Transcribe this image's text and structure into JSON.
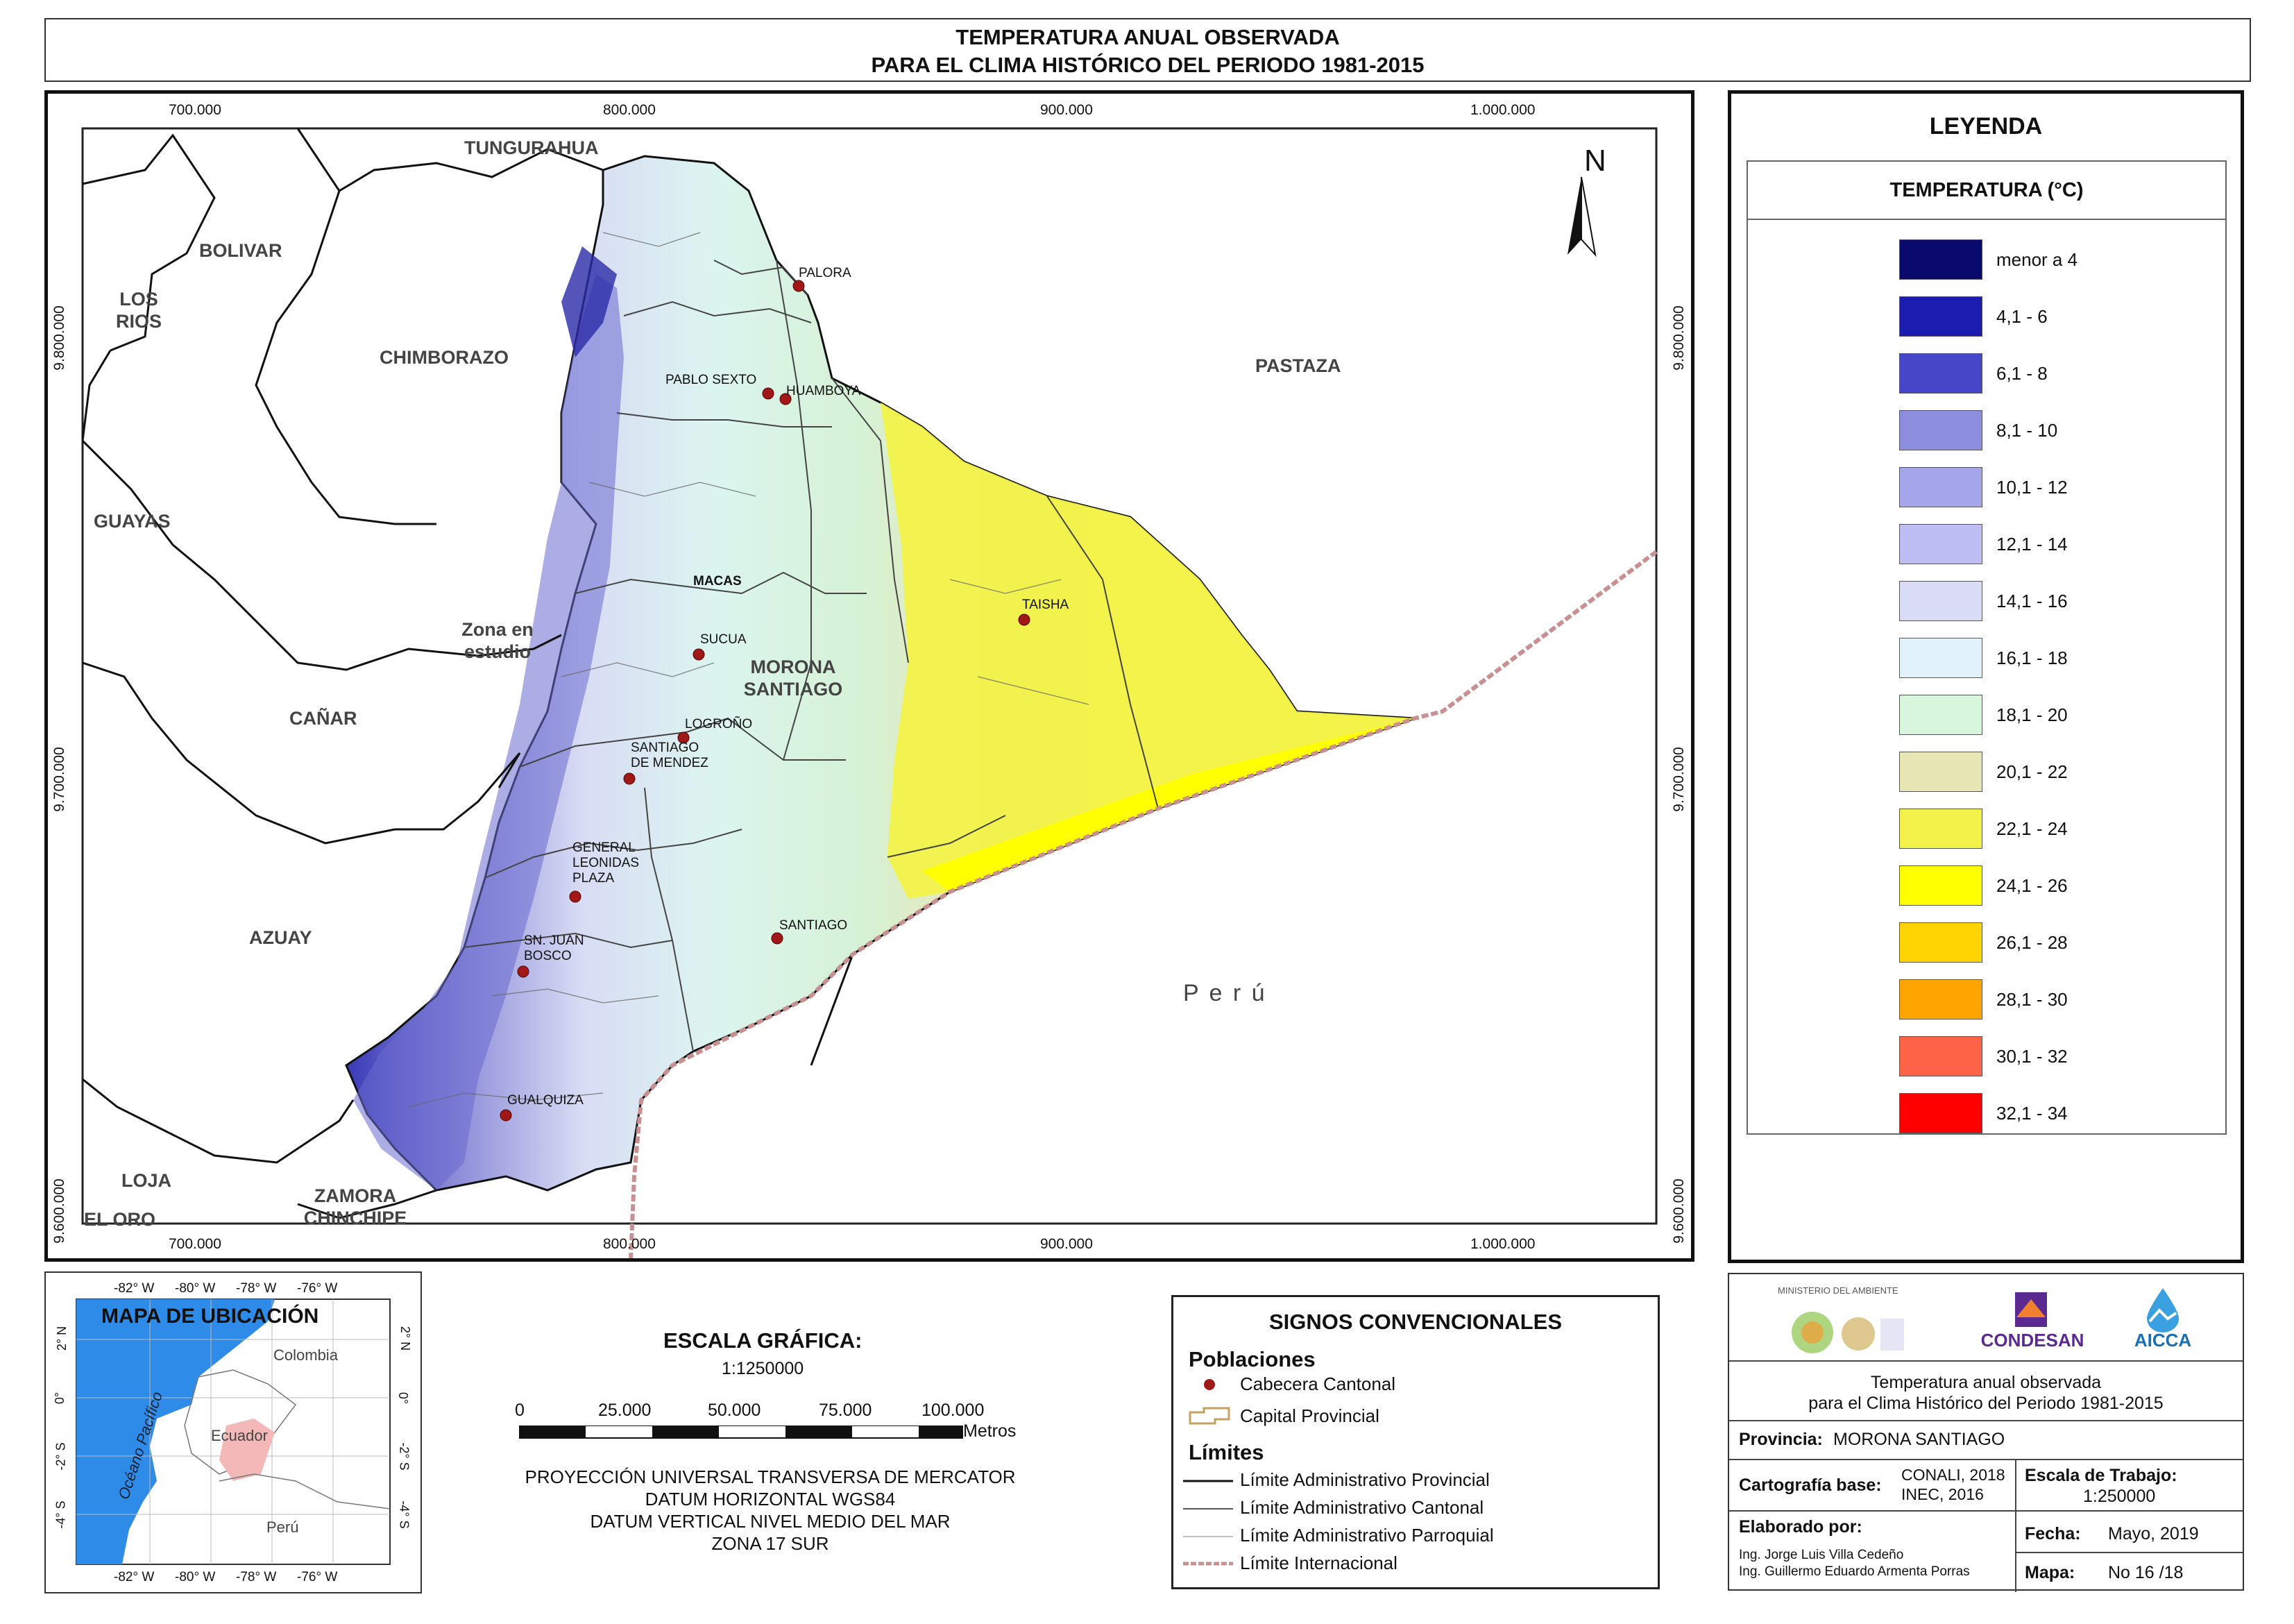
{
  "title": {
    "line1": "TEMPERATURA ANUAL OBSERVADA",
    "line2": "PARA EL CLIMA HISTÓRICO DEL PERIODO 1981-2015"
  },
  "map": {
    "x_ticks": [
      "700.000",
      "800.000",
      "900.000",
      "1.000.000"
    ],
    "y_ticks": [
      "9.800.000",
      "9.700.000",
      "9.600.000"
    ],
    "north": "N",
    "regions": {
      "tungurahua": "TUNGURAHUA",
      "bolivar": "BOLIVAR",
      "los_rios_1": "LOS",
      "los_rios_2": "RIOS",
      "chimborazo": "CHIMBORAZO",
      "pastaza": "PASTAZA",
      "guayas": "GUAYAS",
      "zona_1": "Zona en",
      "zona_2": "estudio",
      "canar": "CAÑAR",
      "morona_1": "MORONA",
      "morona_2": "SANTIAGO",
      "azuay": "AZUAY",
      "peru": "P e r ú",
      "loja": "LOJA",
      "el_oro": "EL ORO",
      "zamora_1": "ZAMORA",
      "zamora_2": "CHINCHIPE"
    },
    "towns": {
      "palora": "PALORA",
      "pablo_sexto": "PABLO SEXTO",
      "huamboya": "HUAMBOYA",
      "macas": "MACAS",
      "taisha": "TAISHA",
      "sucua": "SUCUA",
      "logrono": "LOGROÑO",
      "santiago_mendez_1": "SANTIAGO",
      "santiago_mendez_2": "DE MENDEZ",
      "gral_plaza_1": "GENERAL",
      "gral_plaza_2": "LEONIDAS",
      "gral_plaza_3": "PLAZA",
      "santiago": "SANTIAGO",
      "sjb_1": "SN. JUAN",
      "sjb_2": "BOSCO",
      "gualquiza": "GUALQUIZA"
    }
  },
  "legend": {
    "title": "LEYENDA",
    "subtitle": "TEMPERATURA (°C)",
    "classes": [
      {
        "label": "menor a 4",
        "color": "#0a0a6e"
      },
      {
        "label": "4,1 - 6",
        "color": "#1c1cb0"
      },
      {
        "label": "6,1 - 8",
        "color": "#4646c8"
      },
      {
        "label": "8,1 - 10",
        "color": "#8e8ede"
      },
      {
        "label": "10,1 - 12",
        "color": "#a6a6ea"
      },
      {
        "label": "12,1 - 14",
        "color": "#bebef4"
      },
      {
        "label": "14,1 - 16",
        "color": "#dadcf6"
      },
      {
        "label": "16,1 - 18",
        "color": "#e2f2fa"
      },
      {
        "label": "18,1 - 20",
        "color": "#d8f6dc"
      },
      {
        "label": "20,1 - 22",
        "color": "#e8e6b4"
      },
      {
        "label": "22,1 - 24",
        "color": "#f2f24a"
      },
      {
        "label": "24,1 - 26",
        "color": "#ffff00"
      },
      {
        "label": "26,1 - 28",
        "color": "#ffd400"
      },
      {
        "label": "28,1 - 30",
        "color": "#ffa500"
      },
      {
        "label": "30,1 - 32",
        "color": "#ff6347"
      },
      {
        "label": "32,1 - 34",
        "color": "#ff0000"
      }
    ]
  },
  "location_map": {
    "title": "MAPA DE UBICACIÓN",
    "top_ticks": [
      "-82° W",
      "-80° W",
      "-78° W",
      "-76° W"
    ],
    "bottom_ticks": [
      "-82° W",
      "-80° W",
      "-78° W",
      "-76° W"
    ],
    "side_ticks": [
      "2° N",
      "0°",
      "-2° S",
      "-4° S"
    ],
    "ocean": "Océano Pacífico",
    "colombia": "Colombia",
    "ecuador": "Ecuador",
    "peru": "Perú"
  },
  "scale": {
    "title": "ESCALA GRÁFICA:",
    "ratio": "1:1250000",
    "ticks": [
      "0",
      "25.000",
      "50.000",
      "75.000",
      "100.000"
    ],
    "unit": "Metros",
    "proj1": "PROYECCIÓN UNIVERSAL TRANSVERSA DE MERCATOR",
    "proj2": "DATUM HORIZONTAL WGS84",
    "proj3": "DATUM VERTICAL NIVEL MEDIO DEL MAR",
    "proj4": "ZONA 17 SUR"
  },
  "signos": {
    "title": "SIGNOS CONVENCIONALES",
    "poblaciones": "Poblaciones",
    "cabecera": "Cabecera Cantonal",
    "capital": "Capital Provincial",
    "limites": "Límites",
    "lim_prov": "Límite Administrativo Provincial",
    "lim_cant": "Límite Administrativo Cantonal",
    "lim_parr": "Límite Administrativo Parroquial",
    "lim_int": "Límite Internacional"
  },
  "info": {
    "ministerio": "MINISTERIO DEL AMBIENTE",
    "condesan": "CONDESAN",
    "aicca": "AICCA",
    "desc1": "Temperatura anual observada",
    "desc2": "para el Clima Histórico del Periodo 1981-2015",
    "provincia_label": "Provincia:",
    "provincia_value": "MORONA SANTIAGO",
    "cartografia_label": "Cartografía base:",
    "cartografia_1": "CONALI, 2018",
    "cartografia_2": "INEC, 2016",
    "escala_label": "Escala de Trabajo:",
    "escala_value": "1:250000",
    "elaborado_label": "Elaborado por:",
    "autor1": "Ing. Jorge Luis Villa Cedeño",
    "autor2": "Ing. Guillermo Eduardo Armenta Porras",
    "fecha_label": "Fecha:",
    "fecha_value": "Mayo, 2019",
    "mapa_label": "Mapa:",
    "mapa_value": "No 16 /18"
  }
}
